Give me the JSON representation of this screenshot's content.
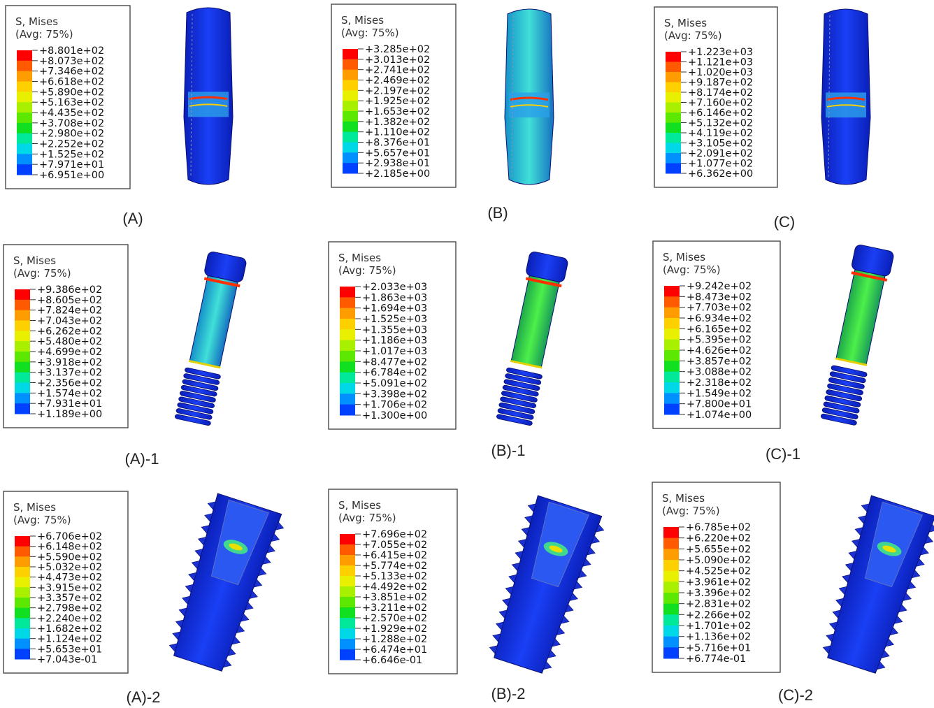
{
  "panels": [
    {
      "label": "(A)",
      "legend": {
        "title": "S, Mises",
        "subtitle": "(Avg: 75%)",
        "values": [
          "+8.801e+02",
          "+8.073e+02",
          "+7.346e+02",
          "+6.618e+02",
          "+5.890e+02",
          "+5.163e+02",
          "+4.435e+02",
          "+3.708e+02",
          "+2.980e+02",
          "+2.252e+02",
          "+1.525e+02",
          "+7.971e+01",
          "+6.951e+00"
        ]
      }
    },
    {
      "label": "(B)",
      "legend": {
        "title": "S, Mises",
        "subtitle": "(Avg: 75%)",
        "values": [
          "+3.285e+02",
          "+3.013e+02",
          "+2.741e+02",
          "+2.469e+02",
          "+2.197e+02",
          "+1.925e+02",
          "+1.653e+02",
          "+1.382e+02",
          "+1.110e+02",
          "+8.376e+01",
          "+5.657e+01",
          "+2.938e+01",
          "+2.185e+00"
        ]
      }
    },
    {
      "label": "(C)",
      "legend": {
        "title": "S, Mises",
        "subtitle": "(Avg: 75%)",
        "values": [
          "+1.223e+03",
          "+1.121e+03",
          "+1.020e+03",
          "+9.187e+02",
          "+8.174e+02",
          "+7.160e+02",
          "+6.146e+02",
          "+5.132e+02",
          "+4.119e+02",
          "+3.105e+02",
          "+2.091e+02",
          "+1.077e+02",
          "+6.362e+00"
        ]
      }
    },
    {
      "label": "(A)-1",
      "legend": {
        "title": "S, Mises",
        "subtitle": "(Avg: 75%)",
        "values": [
          "+9.386e+02",
          "+8.605e+02",
          "+7.824e+02",
          "+7.043e+02",
          "+6.262e+02",
          "+5.480e+02",
          "+4.699e+02",
          "+3.918e+02",
          "+3.137e+02",
          "+2.356e+02",
          "+1.574e+02",
          "+7.931e+01",
          "+1.189e+00"
        ]
      }
    },
    {
      "label": "(B)-1",
      "legend": {
        "title": "S, Mises",
        "subtitle": "(Avg: 75%)",
        "values": [
          "+2.033e+03",
          "+1.863e+03",
          "+1.694e+03",
          "+1.525e+03",
          "+1.355e+03",
          "+1.186e+03",
          "+1.017e+03",
          "+8.477e+02",
          "+6.784e+02",
          "+5.091e+02",
          "+3.398e+02",
          "+1.706e+02",
          "+1.300e+00"
        ]
      }
    },
    {
      "label": "(C)-1",
      "legend": {
        "title": "S, Mises",
        "subtitle": "(Avg: 75%)",
        "values": [
          "+9.242e+02",
          "+8.473e+02",
          "+7.703e+02",
          "+6.934e+02",
          "+6.165e+02",
          "+5.395e+02",
          "+4.626e+02",
          "+3.857e+02",
          "+3.088e+02",
          "+2.318e+02",
          "+1.549e+02",
          "+7.800e+01",
          "+1.074e+00"
        ]
      }
    },
    {
      "label": "(A)-2",
      "legend": {
        "title": "S, Mises",
        "subtitle": "(Avg: 75%)",
        "values": [
          "+6.706e+02",
          "+6.148e+02",
          "+5.590e+02",
          "+5.032e+02",
          "+4.473e+02",
          "+3.915e+02",
          "+3.357e+02",
          "+2.798e+02",
          "+2.240e+02",
          "+1.682e+02",
          "+1.124e+02",
          "+5.653e+01",
          "+7.043e-01"
        ]
      }
    },
    {
      "label": "(B)-2",
      "legend": {
        "title": "S, Mises",
        "subtitle": "(Avg: 75%)",
        "values": [
          "+7.696e+02",
          "+7.055e+02",
          "+6.415e+02",
          "+5.774e+02",
          "+5.133e+02",
          "+4.492e+02",
          "+3.851e+02",
          "+3.211e+02",
          "+2.570e+02",
          "+1.929e+02",
          "+1.288e+02",
          "+6.474e+01",
          "+6.646e-01"
        ]
      }
    },
    {
      "label": "(C)-2",
      "legend": {
        "title": "S, Mises",
        "subtitle": "(Avg: 75%)",
        "values": [
          "+6.785e+02",
          "+6.220e+02",
          "+5.655e+02",
          "+5.090e+02",
          "+4.525e+02",
          "+3.961e+02",
          "+3.396e+02",
          "+2.831e+02",
          "+2.266e+02",
          "+1.701e+02",
          "+1.136e+02",
          "+5.716e+01",
          "+6.774e-01"
        ]
      }
    }
  ]
}
